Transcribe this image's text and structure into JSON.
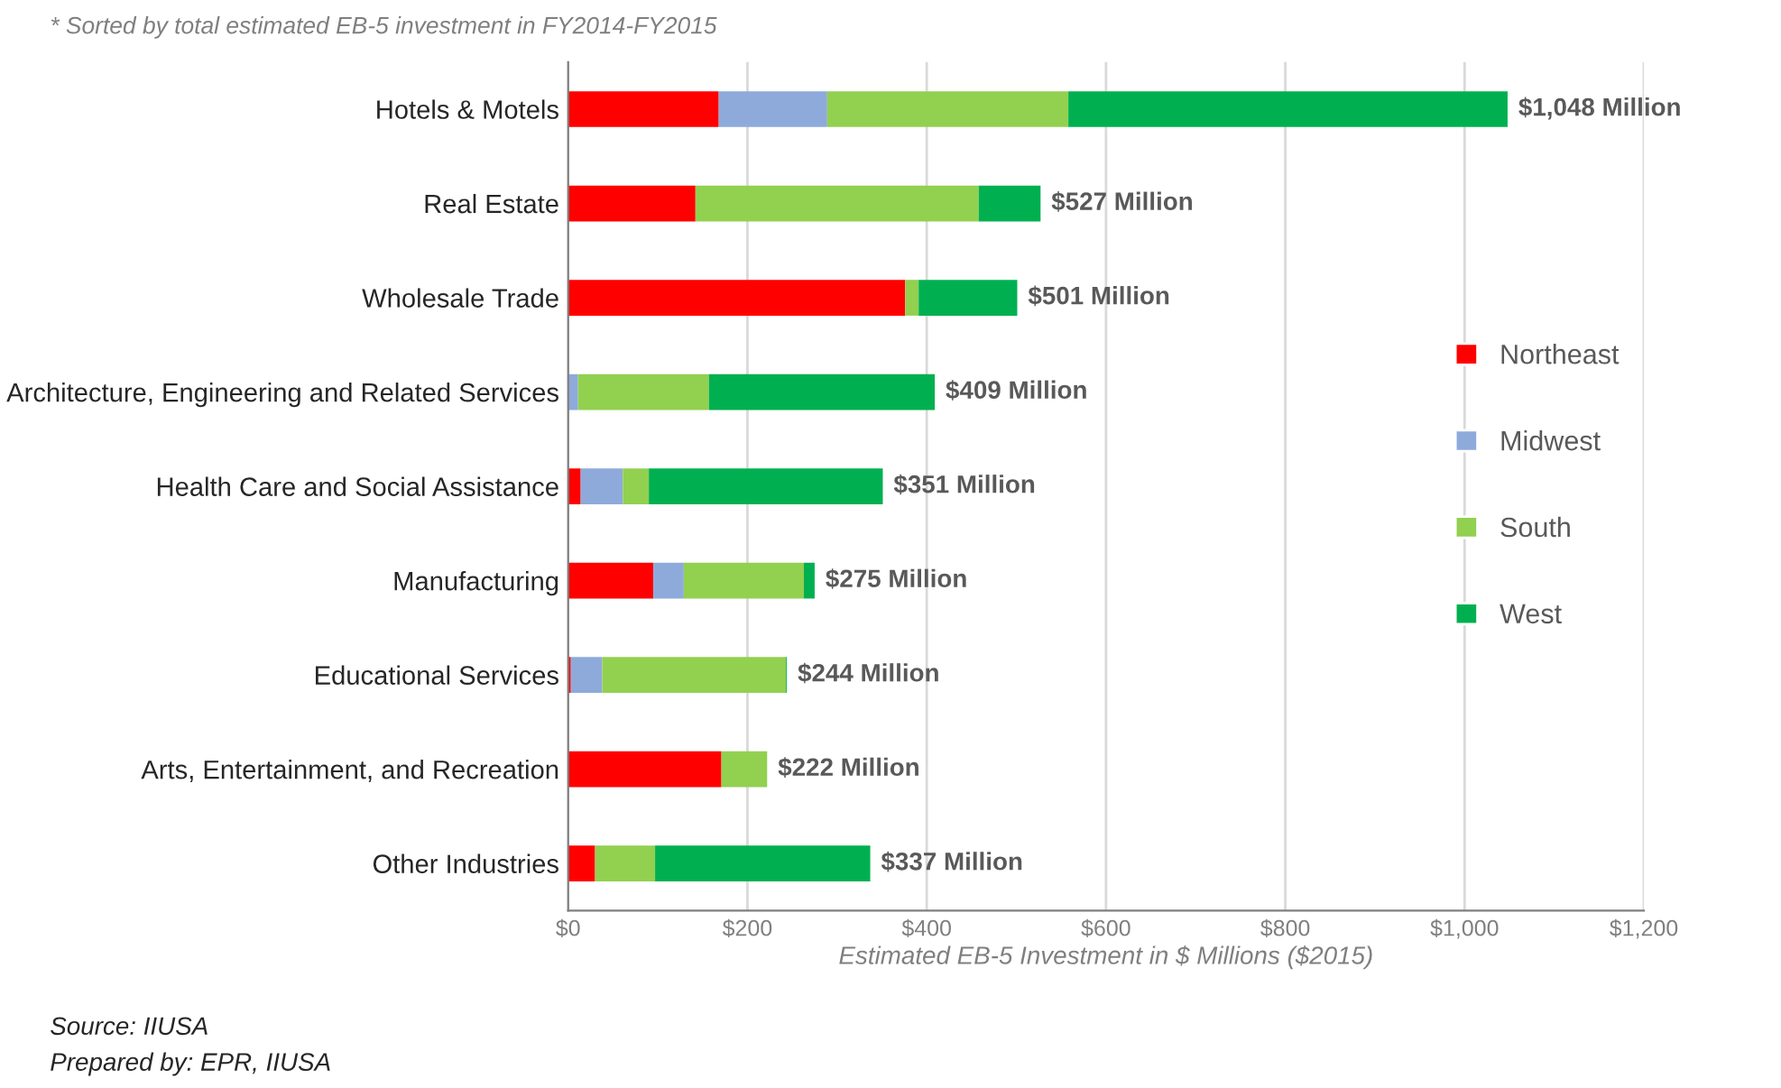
{
  "chart_data": {
    "type": "bar",
    "orientation": "horizontal",
    "stacked": true,
    "categories": [
      "Hotels & Motels",
      "Real Estate",
      "Wholesale Trade",
      "Architecture, Engineering and Related Services",
      "Health Care and Social Assistance",
      "Manufacturing",
      "Educational Services",
      "Arts, Entertainment, and Recreation",
      "Other Industries"
    ],
    "series": [
      {
        "name": "Northeast",
        "color": "#ff0000",
        "values": [
          168,
          142,
          376,
          0,
          14,
          95,
          3,
          171,
          30
        ]
      },
      {
        "name": "Midwest",
        "color": "#8eaadb",
        "values": [
          121,
          0,
          0,
          11,
          47,
          34,
          35,
          0,
          0
        ]
      },
      {
        "name": "South",
        "color": "#92d050",
        "values": [
          269,
          316,
          15,
          146,
          29,
          134,
          205,
          51,
          67
        ]
      },
      {
        "name": "West",
        "color": "#00b050",
        "values": [
          490,
          69,
          110,
          252,
          261,
          12,
          1,
          0,
          240
        ]
      }
    ],
    "totals": [
      "$1,048 Million",
      "$527 Million",
      "$501 Million",
      "$409 Million",
      "$351 Million",
      "$275 Million",
      "$244 Million",
      "$222 Million",
      "$337 Million"
    ],
    "xlabel": "Estimated EB-5 Investment in $ Millions ($2015)",
    "xlim": [
      0,
      1200
    ],
    "xticks": [
      {
        "value": 0,
        "label": "$0"
      },
      {
        "value": 200,
        "label": "$200"
      },
      {
        "value": 400,
        "label": "$400"
      },
      {
        "value": 600,
        "label": "$600"
      },
      {
        "value": 800,
        "label": "$800"
      },
      {
        "value": 1000,
        "label": "$1,000"
      },
      {
        "value": 1200,
        "label": "$1,200"
      }
    ],
    "grid": "x",
    "legend": "right",
    "annotations": [
      "* Sorted by total estimated EB-5 investment in FY2014-FY2015",
      "Source: IIUSA",
      "Prepared by: EPR, IIUSA"
    ]
  }
}
